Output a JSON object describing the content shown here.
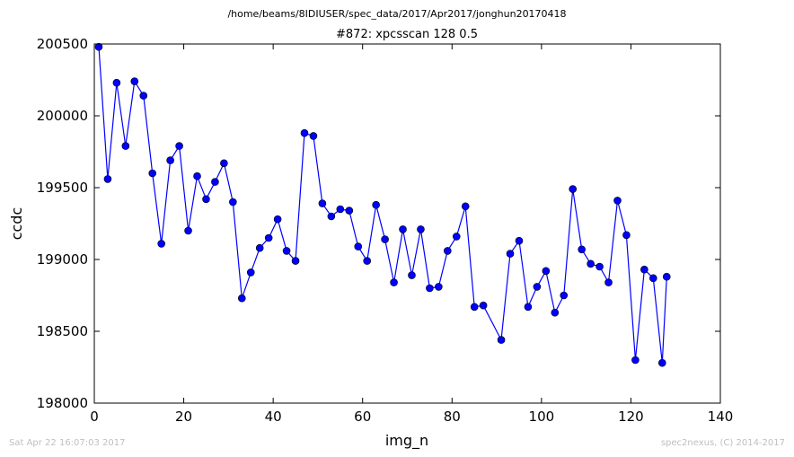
{
  "header": {
    "path": "/home/beams/8IDIUSER/spec_data/2017/Apr2017/jonghun20170418"
  },
  "footer": {
    "timestamp": "Sat Apr 22 16:07:03 2017",
    "credit": "spec2nexus, (C) 2014-2017"
  },
  "chart_data": {
    "type": "line",
    "title": "#872: xpcsscan 128 0.5",
    "xlabel": "img_n",
    "ylabel": "ccdc",
    "xlim": [
      0,
      140
    ],
    "ylim": [
      198000,
      200500
    ],
    "xticks": [
      0,
      20,
      40,
      60,
      80,
      100,
      120,
      140
    ],
    "yticks": [
      198000,
      198500,
      199000,
      199500,
      200000,
      200500
    ],
    "xtick_labels": [
      "0",
      "20",
      "40",
      "60",
      "80",
      "100",
      "120",
      "140"
    ],
    "ytick_labels": [
      "198000",
      "198500",
      "199000",
      "199500",
      "200000",
      "200500"
    ],
    "grid": false,
    "marker": "circle",
    "color": "#0000ff",
    "x": [
      1,
      3,
      5,
      7,
      9,
      11,
      13,
      15,
      17,
      19,
      21,
      23,
      25,
      27,
      29,
      31,
      33,
      35,
      37,
      39,
      41,
      43,
      45,
      47,
      49,
      51,
      53,
      55,
      57,
      59,
      61,
      63,
      65,
      67,
      69,
      71,
      73,
      75,
      77,
      79,
      81,
      83,
      85,
      87,
      91,
      93,
      95,
      97,
      99,
      101,
      103,
      105,
      107,
      109,
      111,
      113,
      115,
      117,
      119,
      121,
      123,
      125,
      127,
      128
    ],
    "y": [
      200480,
      199560,
      200230,
      199790,
      200240,
      200140,
      199600,
      199110,
      199690,
      199790,
      199200,
      199580,
      199420,
      199540,
      199670,
      199400,
      198730,
      198910,
      199080,
      199150,
      199280,
      199060,
      198990,
      199880,
      199860,
      199390,
      199300,
      199350,
      199340,
      199090,
      198990,
      199380,
      199140,
      198840,
      199210,
      198890,
      199210,
      198800,
      198810,
      199060,
      199160,
      199370,
      198670,
      198680,
      198440,
      199040,
      199130,
      198670,
      198810,
      198920,
      198630,
      198750,
      199490,
      199070,
      198970,
      198950,
      198840,
      199410,
      199170,
      198300,
      198930,
      198870,
      198280,
      198880
    ]
  }
}
